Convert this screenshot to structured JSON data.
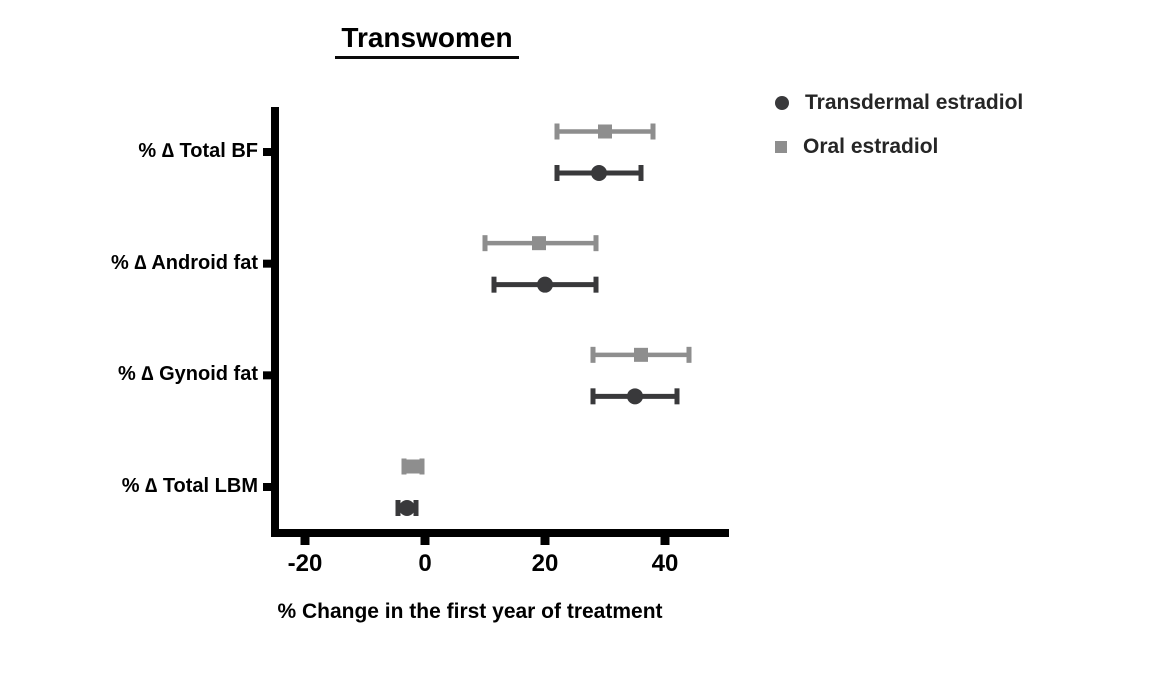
{
  "chart_data": {
    "type": "scatter",
    "variant": "horizontal-dot-error-bar-forest-plot",
    "title": "Transwomen",
    "xlabel": "% Change in the first year of treatment",
    "categories": [
      "% ∆ Total BF",
      "% ∆ Android fat",
      "% ∆ Gynoid fat",
      "% ∆ Total LBM"
    ],
    "x_ticks": [
      -20,
      0,
      20,
      40
    ],
    "x_tick_labels": [
      "-20",
      "0",
      "20",
      "40"
    ],
    "xlim": [
      -25,
      51
    ],
    "grid": false,
    "legend_position": "top-right",
    "axis_color": "#000000",
    "series": [
      {
        "name": "Transdermal estradiol",
        "marker": "circle",
        "color": "#39393b",
        "values": [
          29,
          20,
          35,
          -3
        ],
        "ci_low": [
          22,
          11.5,
          28,
          -4.5
        ],
        "ci_high": [
          36,
          28.5,
          42,
          -1.5
        ]
      },
      {
        "name": "Oral estradiol",
        "marker": "square",
        "color": "#8e8e8e",
        "values": [
          30,
          19,
          36,
          -2
        ],
        "ci_low": [
          22,
          10,
          28,
          -3.5
        ],
        "ci_high": [
          38,
          28.5,
          44,
          -0.5
        ]
      }
    ]
  }
}
